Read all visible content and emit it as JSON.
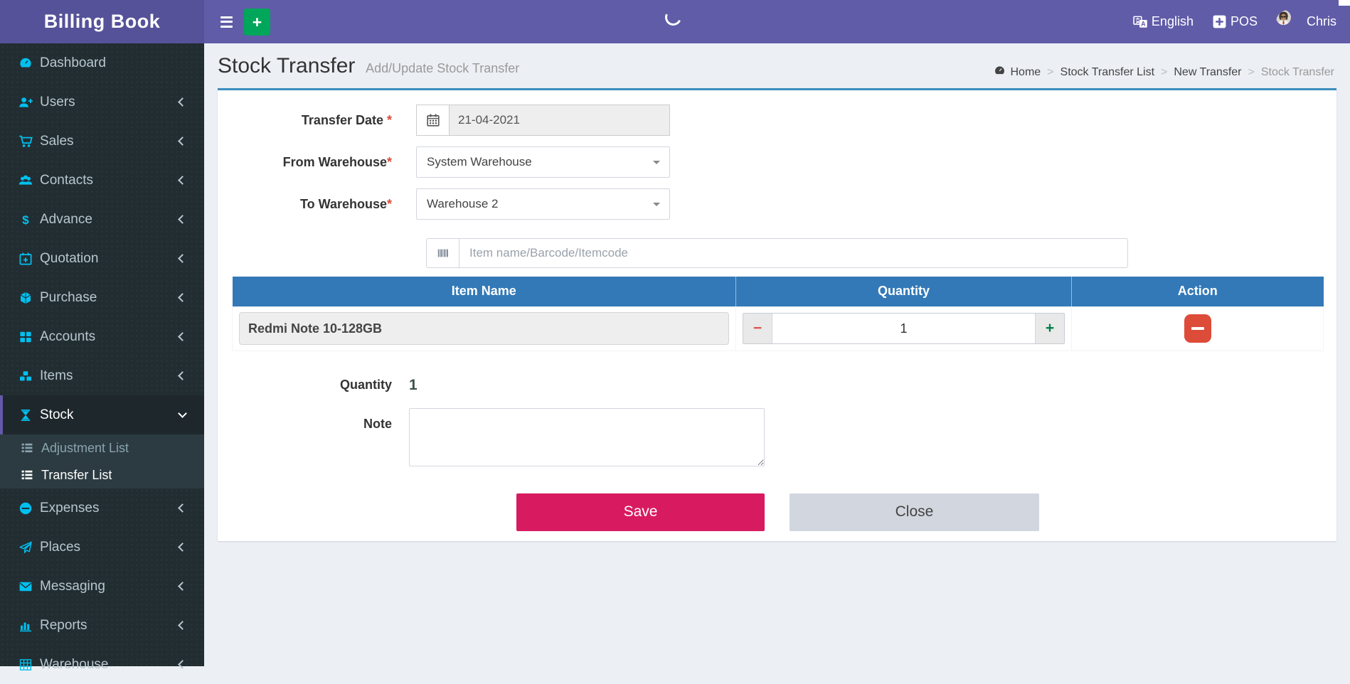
{
  "app": {
    "logo": "Billing Book"
  },
  "navbar": {
    "language_label": "English",
    "pos_label": "POS",
    "user_name": "Chris"
  },
  "sidebar": {
    "items": [
      {
        "label": "Dashboard",
        "icon": "dashboard-icon",
        "chevron": "none",
        "active": false
      },
      {
        "label": "Users",
        "icon": "user-plus-icon",
        "chevron": "left",
        "active": false
      },
      {
        "label": "Sales",
        "icon": "cart-icon",
        "chevron": "left",
        "active": false
      },
      {
        "label": "Contacts",
        "icon": "users-icon",
        "chevron": "left",
        "active": false
      },
      {
        "label": "Advance",
        "icon": "dollar-icon",
        "chevron": "left",
        "active": false
      },
      {
        "label": "Quotation",
        "icon": "calendar-plus-icon",
        "chevron": "left",
        "active": false
      },
      {
        "label": "Purchase",
        "icon": "cube-icon",
        "chevron": "left",
        "active": false
      },
      {
        "label": "Accounts",
        "icon": "grid-icon",
        "chevron": "left",
        "active": false
      },
      {
        "label": "Items",
        "icon": "cubes-icon",
        "chevron": "left",
        "active": false
      },
      {
        "label": "Stock",
        "icon": "hourglass-icon",
        "chevron": "down",
        "active": true,
        "children": [
          {
            "label": "Adjustment List",
            "icon": "list-icon",
            "active": false
          },
          {
            "label": "Transfer List",
            "icon": "list-icon",
            "active": true
          }
        ]
      },
      {
        "label": "Expenses",
        "icon": "minus-circle-icon",
        "chevron": "left",
        "active": false
      },
      {
        "label": "Places",
        "icon": "paper-plane-icon",
        "chevron": "left",
        "active": false
      },
      {
        "label": "Messaging",
        "icon": "envelope-icon",
        "chevron": "left",
        "active": false
      },
      {
        "label": "Reports",
        "icon": "bar-chart-icon",
        "chevron": "left",
        "active": false
      },
      {
        "label": "Warehouse",
        "icon": "warehouse-icon",
        "chevron": "left",
        "active": false
      }
    ]
  },
  "page": {
    "title": "Stock Transfer",
    "subtitle": "Add/Update Stock Transfer",
    "breadcrumb": {
      "home": "Home",
      "items": [
        "Stock Transfer List",
        "New Transfer"
      ],
      "current": "Stock Transfer"
    }
  },
  "form": {
    "transfer_date": {
      "label": "Transfer Date",
      "required_mark": "*",
      "value": "21-04-2021"
    },
    "from_warehouse": {
      "label": "From Warehouse",
      "required_mark": "*",
      "value": "System Warehouse"
    },
    "to_warehouse": {
      "label": "To Warehouse",
      "required_mark": "*",
      "value": "Warehouse 2"
    },
    "item_search": {
      "placeholder": "Item name/Barcode/Itemcode"
    },
    "quantity_total": {
      "label": "Quantity",
      "value": "1"
    },
    "note": {
      "label": "Note",
      "value": ""
    },
    "buttons": {
      "save": "Save",
      "close": "Close"
    }
  },
  "items_table": {
    "headers": [
      "Item Name",
      "Quantity",
      "Action"
    ],
    "rows": [
      {
        "item_name": "Redmi Note 10-128GB",
        "quantity": "1"
      }
    ]
  },
  "colors": {
    "navbar_purple": "#605ca8",
    "logo_purple": "#555299",
    "sidebar_dark": "#222d32",
    "submenu_dark": "#2c3b41",
    "icon_cyan": "#00c0ef",
    "add_green": "#00a65a",
    "card_accent_blue": "#3c8dbc",
    "table_header_blue": "#3379b7",
    "save_pink": "#d81b60",
    "danger_red": "#dd4b39",
    "close_gray": "#d2d6de",
    "content_bg": "#ecf0f5"
  }
}
